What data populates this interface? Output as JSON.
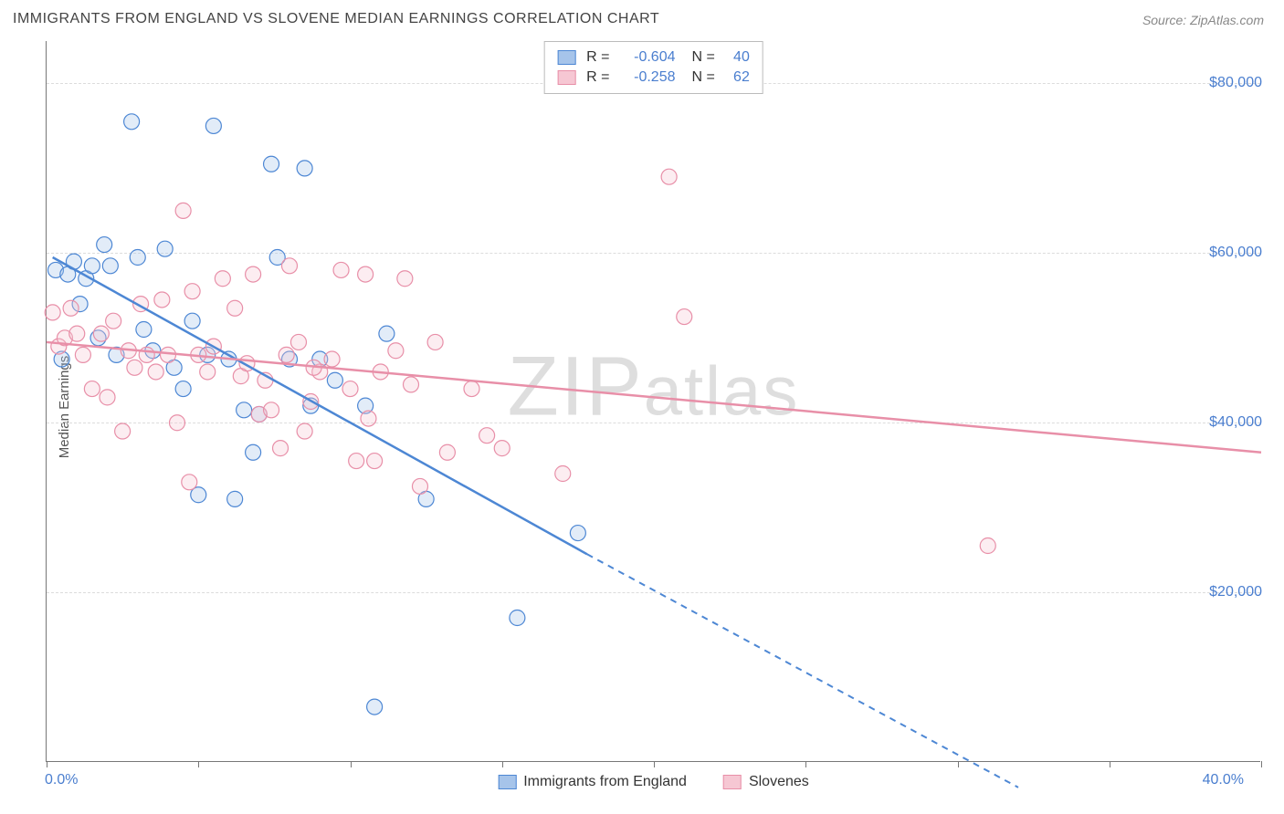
{
  "title": "IMMIGRANTS FROM ENGLAND VS SLOVENE MEDIAN EARNINGS CORRELATION CHART",
  "source_label": "Source: ZipAtlas.com",
  "watermark": "ZIPatlas",
  "y_axis_title": "Median Earnings",
  "chart": {
    "type": "scatter",
    "background_color": "#ffffff",
    "grid_color": "#dcdcdc",
    "axis_color": "#777777",
    "label_color": "#4a7ecf",
    "xlim": [
      0,
      40
    ],
    "ylim": [
      0,
      85000
    ],
    "x_tick_positions": [
      0,
      5,
      10,
      15,
      20,
      25,
      30,
      35,
      40
    ],
    "x_tick_labels_shown": {
      "0": "0.0%",
      "40": "40.0%"
    },
    "y_gridlines": [
      20000,
      40000,
      60000,
      80000
    ],
    "y_tick_labels": [
      "$20,000",
      "$40,000",
      "$60,000",
      "$80,000"
    ],
    "marker_radius": 8.5,
    "marker_stroke_width": 1.2,
    "marker_fill_opacity": 0.32,
    "series": [
      {
        "name": "Immigrants from England",
        "color_stroke": "#4d87d4",
        "color_fill": "#a6c4ea",
        "r_value": "-0.604",
        "n_value": "40",
        "trend": {
          "x1": 0.2,
          "y1": 59500,
          "x2": 17.8,
          "y2": 24500,
          "x2_ext": 32.0,
          "y2_ext": -3000
        },
        "points": [
          [
            0.3,
            58000
          ],
          [
            0.5,
            47500
          ],
          [
            0.7,
            57500
          ],
          [
            0.9,
            59000
          ],
          [
            1.1,
            54000
          ],
          [
            1.3,
            57000
          ],
          [
            1.5,
            58500
          ],
          [
            1.7,
            50000
          ],
          [
            1.9,
            61000
          ],
          [
            2.1,
            58500
          ],
          [
            2.3,
            48000
          ],
          [
            2.8,
            75500
          ],
          [
            3.0,
            59500
          ],
          [
            3.2,
            51000
          ],
          [
            3.5,
            48500
          ],
          [
            3.9,
            60500
          ],
          [
            4.2,
            46500
          ],
          [
            4.5,
            44000
          ],
          [
            4.8,
            52000
          ],
          [
            5.0,
            31500
          ],
          [
            5.3,
            48000
          ],
          [
            5.5,
            75000
          ],
          [
            6.0,
            47500
          ],
          [
            6.2,
            31000
          ],
          [
            6.5,
            41500
          ],
          [
            6.8,
            36500
          ],
          [
            7.0,
            41000
          ],
          [
            7.4,
            70500
          ],
          [
            7.6,
            59500
          ],
          [
            8.0,
            47500
          ],
          [
            8.5,
            70000
          ],
          [
            8.7,
            42000
          ],
          [
            9.0,
            47500
          ],
          [
            9.5,
            45000
          ],
          [
            10.5,
            42000
          ],
          [
            11.2,
            50500
          ],
          [
            10.8,
            6500
          ],
          [
            12.5,
            31000
          ],
          [
            15.5,
            17000
          ],
          [
            17.5,
            27000
          ]
        ]
      },
      {
        "name": "Slovenes",
        "color_stroke": "#e88fa8",
        "color_fill": "#f6c7d3",
        "r_value": "-0.258",
        "n_value": "62",
        "trend": {
          "x1": 0,
          "y1": 49500,
          "x2": 40,
          "y2": 36500
        },
        "points": [
          [
            0.2,
            53000
          ],
          [
            0.4,
            49000
          ],
          [
            0.6,
            50000
          ],
          [
            0.8,
            53500
          ],
          [
            1.0,
            50500
          ],
          [
            1.2,
            48000
          ],
          [
            1.5,
            44000
          ],
          [
            1.8,
            50500
          ],
          [
            2.0,
            43000
          ],
          [
            2.2,
            52000
          ],
          [
            2.5,
            39000
          ],
          [
            2.7,
            48500
          ],
          [
            2.9,
            46500
          ],
          [
            3.1,
            54000
          ],
          [
            3.3,
            48000
          ],
          [
            3.6,
            46000
          ],
          [
            3.8,
            54500
          ],
          [
            4.0,
            48000
          ],
          [
            4.3,
            40000
          ],
          [
            4.5,
            65000
          ],
          [
            4.7,
            33000
          ],
          [
            4.8,
            55500
          ],
          [
            5.0,
            48000
          ],
          [
            5.3,
            46000
          ],
          [
            5.5,
            49000
          ],
          [
            5.8,
            57000
          ],
          [
            6.2,
            53500
          ],
          [
            6.4,
            45500
          ],
          [
            6.6,
            47000
          ],
          [
            6.8,
            57500
          ],
          [
            7.0,
            41000
          ],
          [
            7.2,
            45000
          ],
          [
            7.4,
            41500
          ],
          [
            7.7,
            37000
          ],
          [
            7.9,
            48000
          ],
          [
            8.0,
            58500
          ],
          [
            8.3,
            49500
          ],
          [
            8.5,
            39000
          ],
          [
            8.7,
            42500
          ],
          [
            9.0,
            46000
          ],
          [
            9.4,
            47500
          ],
          [
            9.7,
            58000
          ],
          [
            10.0,
            44000
          ],
          [
            10.2,
            35500
          ],
          [
            10.5,
            57500
          ],
          [
            10.6,
            40500
          ],
          [
            10.8,
            35500
          ],
          [
            11.0,
            46000
          ],
          [
            11.5,
            48500
          ],
          [
            11.8,
            57000
          ],
          [
            12.0,
            44500
          ],
          [
            12.3,
            32500
          ],
          [
            12.8,
            49500
          ],
          [
            13.2,
            36500
          ],
          [
            14.0,
            44000
          ],
          [
            14.5,
            38500
          ],
          [
            15.0,
            37000
          ],
          [
            17.0,
            34000
          ],
          [
            20.5,
            69000
          ],
          [
            21.0,
            52500
          ],
          [
            31.0,
            25500
          ],
          [
            8.8,
            46500
          ]
        ]
      }
    ]
  },
  "legend_bottom": [
    {
      "label": "Immigrants from England",
      "stroke": "#4d87d4",
      "fill": "#a6c4ea"
    },
    {
      "label": "Slovenes",
      "stroke": "#e88fa8",
      "fill": "#f6c7d3"
    }
  ]
}
